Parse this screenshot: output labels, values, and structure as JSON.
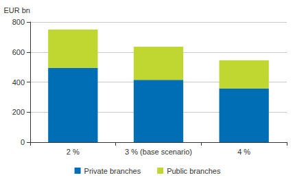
{
  "chart_data": {
    "type": "bar",
    "stacked": true,
    "y_label": "EUR bn",
    "categories": [
      "2 %",
      "3 % (base scenario)",
      "4 %"
    ],
    "series": [
      {
        "name": "Private branches",
        "color": "#006eb4",
        "values": [
          495,
          415,
          358
        ]
      },
      {
        "name": "Public branches",
        "color": "#bfd730",
        "values": [
          255,
          220,
          187
        ]
      }
    ],
    "ylim": [
      0,
      800
    ],
    "yticks": [
      0,
      200,
      400,
      600,
      800
    ],
    "grid": true,
    "legend": "bottom"
  }
}
